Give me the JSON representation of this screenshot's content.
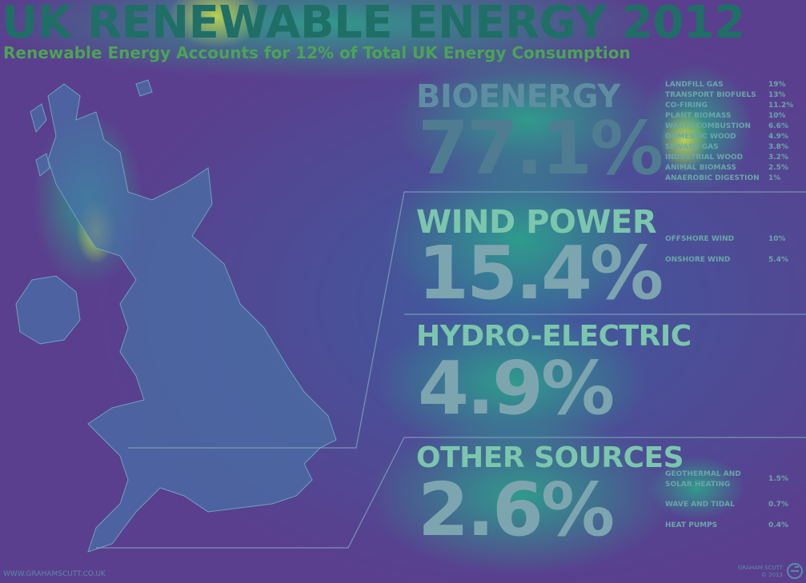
{
  "header": {
    "title": "UK RENEWABLE ENERGY 2012",
    "subtitle": "Renewable Energy Accounts for 12% of Total UK Energy Consumption"
  },
  "sections": {
    "bioenergy": {
      "title": "BIOENERGY",
      "percent": "77.1%",
      "items": [
        {
          "label": "LANDFILL GAS",
          "value": "19%"
        },
        {
          "label": "TRANSPORT BIOFUELS",
          "value": "13%"
        },
        {
          "label": "CO-FIRING",
          "value": "11.2%"
        },
        {
          "label": "PLANT BIOMASS",
          "value": "10%"
        },
        {
          "label": "WASTE COMBUSTION",
          "value": "6.6%"
        },
        {
          "label": "DOMESTIC WOOD",
          "value": "4.9%"
        },
        {
          "label": "SEWAGE GAS",
          "value": "3.8%"
        },
        {
          "label": "INDUSTRIAL WOOD",
          "value": "3.2%"
        },
        {
          "label": "ANIMAL BIOMASS",
          "value": "2.5%"
        },
        {
          "label": "ANAEROBIC DIGESTION",
          "value": "1%"
        }
      ]
    },
    "wind": {
      "title": "WIND POWER",
      "percent": "15.4%",
      "items": [
        {
          "label": "OFFSHORE WIND",
          "value": "10%"
        },
        {
          "label": "ONSHORE WIND",
          "value": "5.4%"
        }
      ]
    },
    "hydro": {
      "title": "HYDRO-ELECTRIC",
      "percent": "4.9%"
    },
    "other": {
      "title": "OTHER SOURCES",
      "percent": "2.6%",
      "items": [
        {
          "label": "GEOTHERMAL AND SOLAR HEATING",
          "value": "1.5%"
        },
        {
          "label": "WAVE AND TIDAL",
          "value": "0.7%"
        },
        {
          "label": "HEAT PUMPS",
          "value": "0.4%"
        }
      ]
    }
  },
  "footer": {
    "website": "WWW.GRAHAMSCUTT.CO.UK",
    "author": "GRAHAM SCUTT",
    "copyright": "© 2013"
  },
  "colors": {
    "background": "#5a3f8e",
    "title": "#1f6f66",
    "subtitle": "#4ba455",
    "accent": "#7bc6ad"
  },
  "icons": {
    "logo": "gs-logo-icon"
  }
}
